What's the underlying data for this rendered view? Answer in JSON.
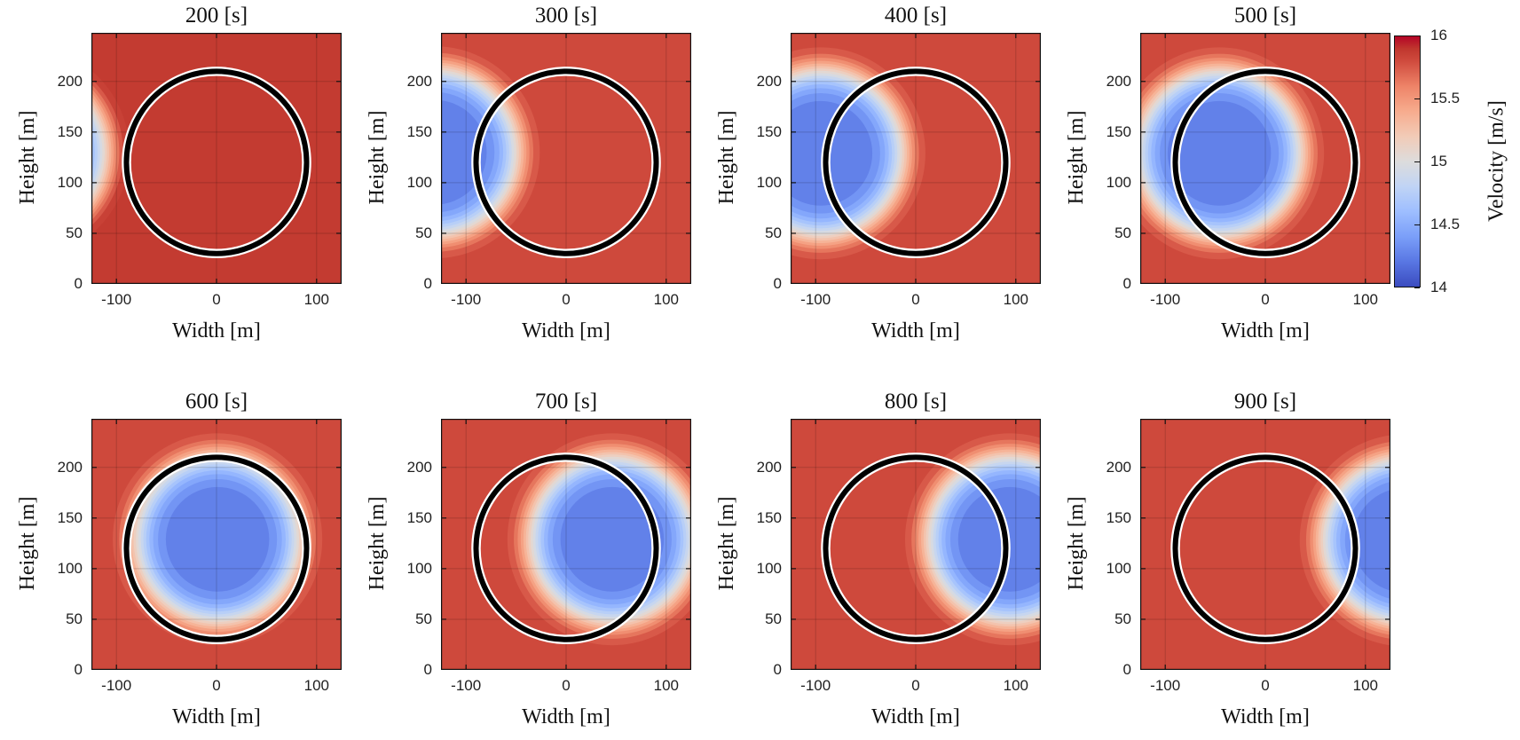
{
  "chart_data": {
    "type": "heatmap",
    "figure_description": "2x4 grid of filled-contour velocity fields at successive times; a wake deficit region convects left-to-right past a fixed rotor circle",
    "panels": [
      {
        "title": "200 [s]",
        "time_s": 200,
        "wake_center": {
          "x": -192,
          "y": 130
        },
        "ambient_velocity": 15.95,
        "ambient_t": 0.94
      },
      {
        "title": "300 [s]",
        "time_s": 300,
        "wake_center": {
          "x": -131,
          "y": 130
        },
        "ambient_velocity": 15.85,
        "ambient_t": 0.905
      },
      {
        "title": "400 [s]",
        "time_s": 400,
        "wake_center": {
          "x": -95,
          "y": 129
        },
        "ambient_velocity": 15.85,
        "ambient_t": 0.905
      },
      {
        "title": "500 [s]",
        "time_s": 500,
        "wake_center": {
          "x": -46,
          "y": 129
        },
        "ambient_velocity": 15.85,
        "ambient_t": 0.905
      },
      {
        "title": "600 [s]",
        "time_s": 600,
        "wake_center": {
          "x": 1,
          "y": 129
        },
        "ambient_velocity": 15.85,
        "ambient_t": 0.905
      },
      {
        "title": "700 [s]",
        "time_s": 700,
        "wake_center": {
          "x": 46,
          "y": 129
        },
        "ambient_velocity": 15.85,
        "ambient_t": 0.905
      },
      {
        "title": "800 [s]",
        "time_s": 800,
        "wake_center": {
          "x": 94,
          "y": 129
        },
        "ambient_velocity": 15.85,
        "ambient_t": 0.905
      },
      {
        "title": "900 [s]",
        "time_s": 900,
        "wake_center": {
          "x": 139,
          "y": 128
        },
        "ambient_velocity": 15.85,
        "ambient_t": 0.905
      }
    ],
    "axes": {
      "xlabel": "Width [m]",
      "ylabel": "Height [m]",
      "xticks": [
        -100,
        0,
        100
      ],
      "yticks": [
        0,
        50,
        100,
        150,
        200
      ],
      "xlim": [
        -125,
        125
      ],
      "ylim": [
        0,
        248
      ],
      "grid": true
    },
    "colorbar": {
      "label": "Velocity [m/s]",
      "ticks": [
        "16",
        "15.5",
        "15",
        "14.5",
        "14"
      ],
      "tick_values": [
        16,
        15.5,
        15,
        14.5,
        14
      ],
      "vmin": 14,
      "vmax": 16
    },
    "colormap": {
      "name": "coolwarm",
      "anchors": [
        [
          0.0,
          "#3b4cc0"
        ],
        [
          0.1,
          "#5977e3"
        ],
        [
          0.2,
          "#7b9ff9"
        ],
        [
          0.3,
          "#9ebeff"
        ],
        [
          0.4,
          "#c0d4f5"
        ],
        [
          0.5,
          "#dddcdc"
        ],
        [
          0.6,
          "#f2cbb7"
        ],
        [
          0.7,
          "#f7ac8e"
        ],
        [
          0.8,
          "#ee8468"
        ],
        [
          0.9,
          "#d04b3e"
        ],
        [
          0.95,
          "#c0372e"
        ],
        [
          1.0,
          "#b40426"
        ]
      ]
    },
    "wake_model": {
      "type": "super-gaussian",
      "radius_scale_m": 85,
      "exponent": 6,
      "min_velocity": 14.22,
      "contour_step": 0.1,
      "lowest_contour": 14.3
    },
    "rotor_circle": {
      "x": 0,
      "y": 120,
      "radius": 90,
      "stroke": "#000000",
      "halo": "#ffffff"
    }
  }
}
